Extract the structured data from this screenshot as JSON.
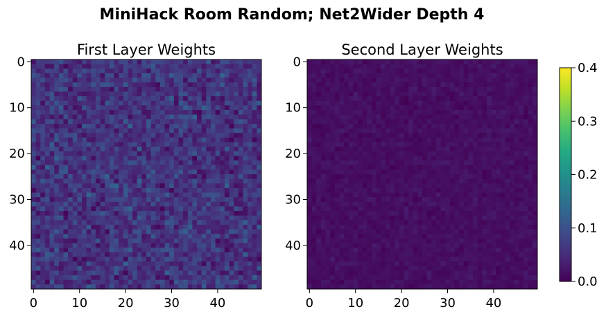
{
  "figure": {
    "title": "MiniHack Room Random; Net2Wider Depth 4"
  },
  "chart_data": [
    {
      "type": "heatmap",
      "title": "First Layer Weights",
      "rows": 50,
      "cols": 50,
      "x_ticks": [
        0,
        10,
        20,
        30,
        40
      ],
      "y_ticks": [
        0,
        10,
        20,
        30,
        40
      ],
      "value_range": [
        0.0,
        0.22
      ],
      "mean_value": 0.06
    },
    {
      "type": "heatmap",
      "title": "Second Layer Weights",
      "rows": 50,
      "cols": 50,
      "x_ticks": [
        0,
        10,
        20,
        30,
        40
      ],
      "y_ticks": [
        0,
        10,
        20,
        30,
        40
      ],
      "value_range": [
        0.0,
        0.03
      ],
      "mean_value": 0.015
    }
  ],
  "colorbar": {
    "colormap": "viridis",
    "vmin": 0.0,
    "vmax": 0.4,
    "ticks": [
      "0.0",
      "0.1",
      "0.2",
      "0.3",
      "0.4"
    ]
  }
}
